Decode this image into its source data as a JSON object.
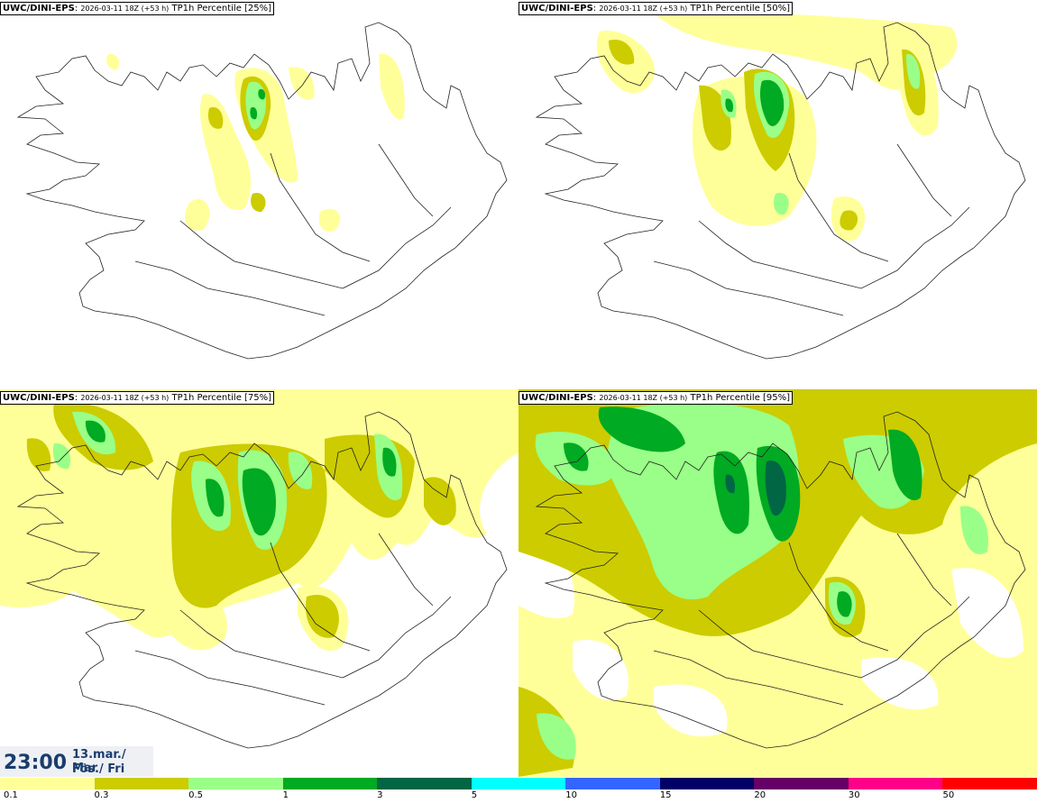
{
  "panels": [
    {
      "model": "UWC/DINI-EPS",
      "run": "2026-03-11 18Z (+53 h)",
      "field": "TP1h Percentile [25%]"
    },
    {
      "model": "UWC/DINI-EPS",
      "run": "2026-03-11 18Z (+53 h)",
      "field": "TP1h Percentile [50%]"
    },
    {
      "model": "UWC/DINI-EPS",
      "run": "2026-03-11 18Z (+53 h)",
      "field": "TP1h Percentile [75%]"
    },
    {
      "model": "UWC/DINI-EPS",
      "run": "2026-03-11 18Z (+53 h)",
      "field": "TP1h Percentile [95%]"
    }
  ],
  "valid_time": {
    "time": "23:00",
    "date_line1": "13.mar./ Mar",
    "date_line2": "Fös./ Fri"
  },
  "colorbar": {
    "levels": [
      "0.1",
      "0.3",
      "0.5",
      "1",
      "3",
      "5",
      "10",
      "15",
      "20",
      "30",
      "50"
    ],
    "colors": [
      "#ffff99",
      "#cccc00",
      "#99ff88",
      "#00aa22",
      "#006644",
      "#00ffff",
      "#3366ff",
      "#000066",
      "#660066",
      "#ff0088",
      "#ff0000"
    ]
  }
}
